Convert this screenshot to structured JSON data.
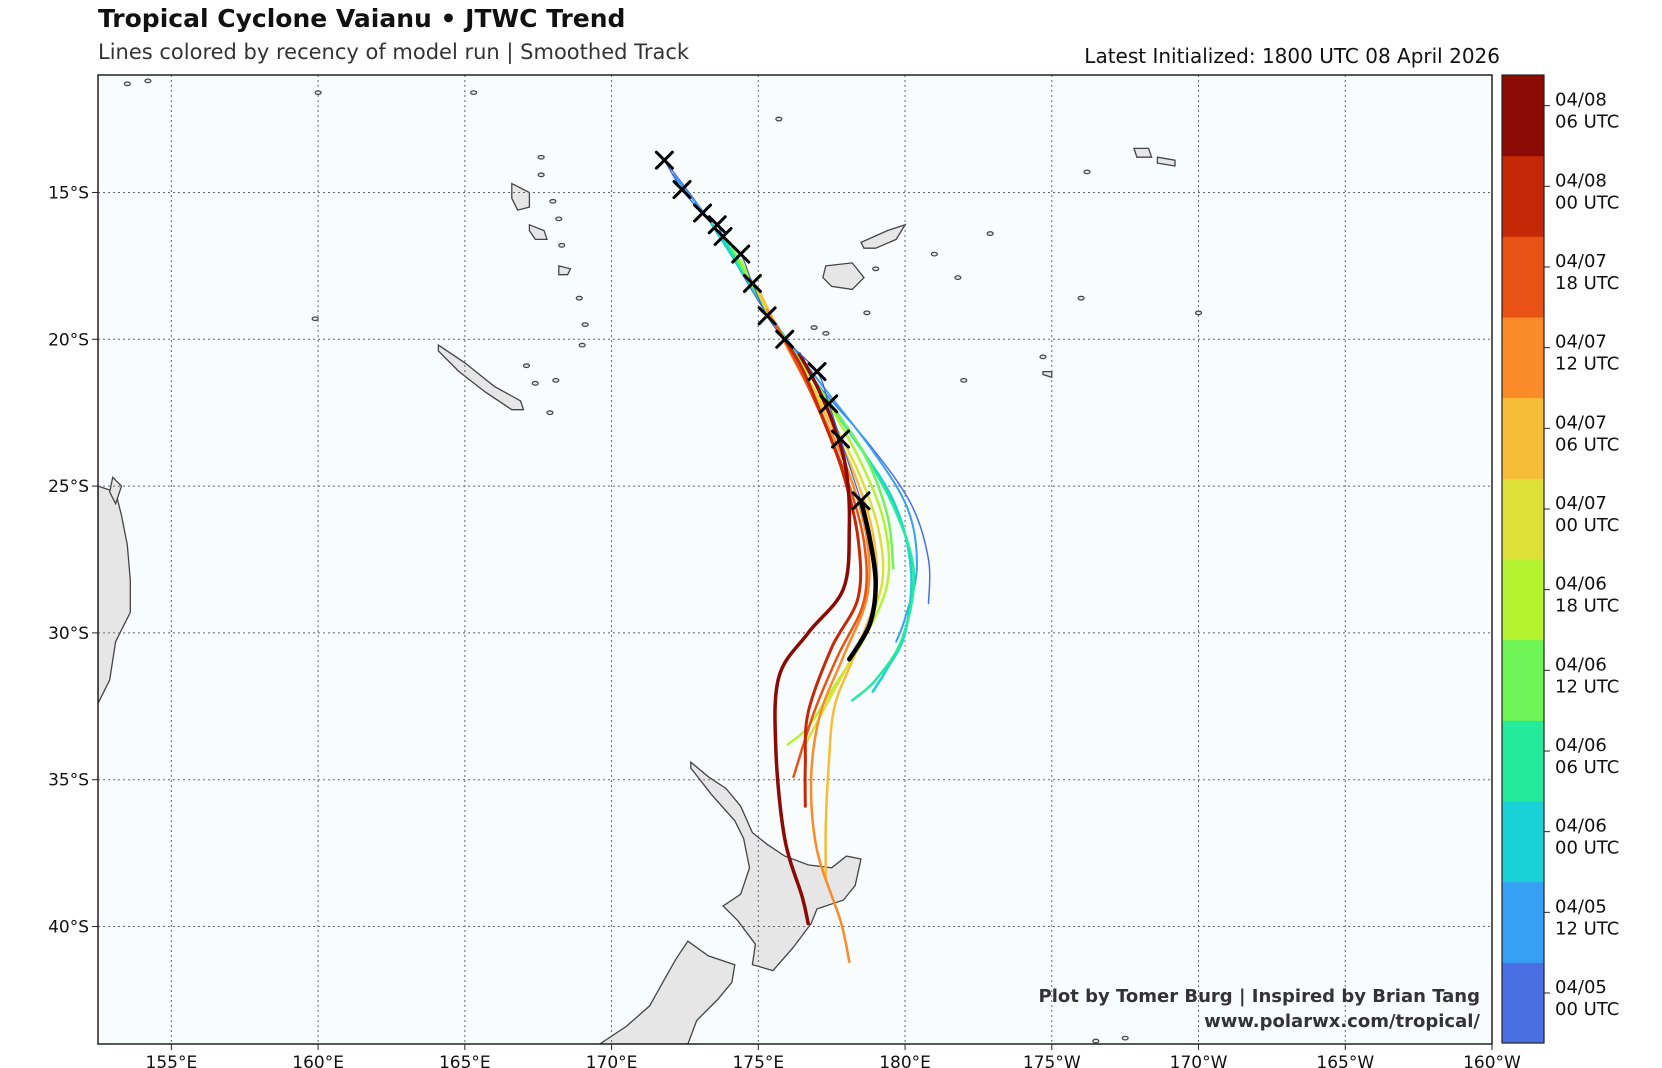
{
  "title": "Tropical Cyclone Vaianu • JTWC Trend",
  "subtitle": "Lines colored by recency of model run | Smoothed Track",
  "latest_initialized": "Latest Initialized: 1800 UTC 08 April 2026",
  "credit_line1": "Plot by Tomer Burg | Inspired by Brian Tang",
  "credit_line2": "www.polarwx.com/tropical/",
  "colors": {
    "ocean": "#f8fcfd",
    "land": "#e6e6e6",
    "coast": "#444444",
    "grid": "#666666"
  },
  "map": {
    "lon_range": [
      152.5,
      200
    ],
    "lat_range": [
      -44,
      -11
    ],
    "lon_ticks": [
      {
        "lon": 155,
        "label": "155°E"
      },
      {
        "lon": 160,
        "label": "160°E"
      },
      {
        "lon": 165,
        "label": "165°E"
      },
      {
        "lon": 170,
        "label": "170°E"
      },
      {
        "lon": 175,
        "label": "175°E"
      },
      {
        "lon": 180,
        "label": "180°E"
      },
      {
        "lon": 185,
        "label": "175°W"
      },
      {
        "lon": 190,
        "label": "170°W"
      },
      {
        "lon": 195,
        "label": "165°W"
      },
      {
        "lon": 200,
        "label": "160°W"
      }
    ],
    "lat_ticks": [
      {
        "lat": -15,
        "label": "15°S"
      },
      {
        "lat": -20,
        "label": "20°S"
      },
      {
        "lat": -25,
        "label": "25°S"
      },
      {
        "lat": -30,
        "label": "30°S"
      },
      {
        "lat": -35,
        "label": "35°S"
      },
      {
        "lat": -40,
        "label": "40°S"
      }
    ]
  },
  "colorbar": [
    {
      "line1": "04/05",
      "line2": "00 UTC",
      "color": "#4a6fe3"
    },
    {
      "line1": "04/05",
      "line2": "12 UTC",
      "color": "#36a0f5"
    },
    {
      "line1": "04/06",
      "line2": "00 UTC",
      "color": "#19d1d6"
    },
    {
      "line1": "04/06",
      "line2": "06 UTC",
      "color": "#24ea9a"
    },
    {
      "line1": "04/06",
      "line2": "12 UTC",
      "color": "#6ef457"
    },
    {
      "line1": "04/06",
      "line2": "18 UTC",
      "color": "#b5f230"
    },
    {
      "line1": "04/07",
      "line2": "00 UTC",
      "color": "#dfe037"
    },
    {
      "line1": "04/07",
      "line2": "06 UTC",
      "color": "#f6bd38"
    },
    {
      "line1": "04/07",
      "line2": "12 UTC",
      "color": "#fb8a28"
    },
    {
      "line1": "04/07",
      "line2": "18 UTC",
      "color": "#e95215"
    },
    {
      "line1": "04/08",
      "line2": "00 UTC",
      "color": "#c52806"
    },
    {
      "line1": "04/08",
      "line2": "06 UTC",
      "color": "#8b0a03"
    }
  ],
  "observed_track": [
    [
      171.8,
      -13.9
    ],
    [
      172.4,
      -14.9
    ],
    [
      173.1,
      -15.7
    ],
    [
      173.6,
      -16.1
    ],
    [
      173.8,
      -16.5
    ],
    [
      174.4,
      -17.1
    ],
    [
      174.8,
      -18.1
    ],
    [
      175.3,
      -19.2
    ],
    [
      175.9,
      -20.0
    ],
    [
      177.0,
      -21.1
    ],
    [
      177.4,
      -22.2
    ],
    [
      177.8,
      -23.4
    ],
    [
      178.5,
      -25.5
    ]
  ],
  "forecast_tracks": [
    {
      "run": "04/05 00 UTC",
      "width": 1.5,
      "points": [
        [
          171.8,
          -13.9
        ],
        [
          173.5,
          -16.2
        ],
        [
          175.2,
          -19.0
        ],
        [
          177.0,
          -21.5
        ],
        [
          178.8,
          -23.6
        ],
        [
          180.2,
          -25.6
        ],
        [
          180.8,
          -27.5
        ],
        [
          180.8,
          -29.0
        ]
      ]
    },
    {
      "run": "04/05 12 UTC",
      "width": 2,
      "points": [
        [
          172.1,
          -14.4
        ],
        [
          173.8,
          -16.6
        ],
        [
          175.4,
          -19.2
        ],
        [
          177.2,
          -21.6
        ],
        [
          178.9,
          -23.8
        ],
        [
          180.1,
          -25.8
        ],
        [
          180.4,
          -27.8
        ],
        [
          180.0,
          -29.5
        ],
        [
          179.7,
          -30.3
        ]
      ]
    },
    {
      "run": "04/06 00 UTC",
      "width": 2.5,
      "points": [
        [
          173.3,
          -15.9
        ],
        [
          174.9,
          -18.4
        ],
        [
          176.6,
          -21.0
        ],
        [
          178.2,
          -23.3
        ],
        [
          179.6,
          -25.5
        ],
        [
          180.2,
          -27.8
        ],
        [
          180.0,
          -30.0
        ],
        [
          179.4,
          -31.2
        ],
        [
          178.9,
          -32.0
        ]
      ]
    },
    {
      "run": "04/06 06 UTC",
      "width": 2.5,
      "points": [
        [
          173.8,
          -16.5
        ],
        [
          175.2,
          -18.9
        ],
        [
          176.9,
          -21.4
        ],
        [
          178.5,
          -23.7
        ],
        [
          179.7,
          -25.9
        ],
        [
          180.3,
          -28.0
        ],
        [
          179.9,
          -30.2
        ],
        [
          179.0,
          -31.6
        ],
        [
          178.2,
          -32.3
        ]
      ]
    },
    {
      "run": "04/06 12 UTC",
      "width": 2.5,
      "points": [
        [
          174.1,
          -16.9
        ],
        [
          175.4,
          -19.2
        ],
        [
          177.1,
          -21.7
        ],
        [
          178.6,
          -23.9
        ],
        [
          179.4,
          -26.0
        ],
        [
          179.6,
          -27.8
        ]
      ]
    },
    {
      "run": "04/06 18 UTC",
      "width": 2.5,
      "points": [
        [
          174.4,
          -17.3
        ],
        [
          175.6,
          -19.6
        ],
        [
          177.2,
          -21.9
        ],
        [
          178.5,
          -24.2
        ],
        [
          179.3,
          -26.3
        ],
        [
          179.4,
          -28.3
        ],
        [
          178.6,
          -30.2
        ],
        [
          177.6,
          -31.8
        ],
        [
          176.7,
          -33.2
        ],
        [
          176.0,
          -33.8
        ]
      ]
    },
    {
      "run": "04/07 00 UTC",
      "width": 2.5,
      "points": [
        [
          174.8,
          -18.0
        ],
        [
          175.8,
          -19.9
        ],
        [
          177.2,
          -22.2
        ],
        [
          178.4,
          -24.5
        ],
        [
          179.1,
          -26.5
        ],
        [
          179.2,
          -28.4
        ],
        [
          178.4,
          -30.4
        ],
        [
          177.4,
          -32.3
        ],
        [
          176.6,
          -33.8
        ]
      ]
    },
    {
      "run": "04/07 06 UTC",
      "width": 2.5,
      "points": [
        [
          175.0,
          -18.3
        ],
        [
          175.9,
          -20.1
        ],
        [
          177.1,
          -22.2
        ],
        [
          178.2,
          -24.4
        ],
        [
          178.9,
          -26.6
        ],
        [
          179.0,
          -28.7
        ],
        [
          178.3,
          -30.7
        ],
        [
          177.6,
          -32.5
        ],
        [
          177.4,
          -34.5
        ],
        [
          177.3,
          -36.5
        ],
        [
          177.3,
          -38.3
        ]
      ]
    },
    {
      "run": "04/07 12 UTC",
      "width": 2.5,
      "points": [
        [
          175.3,
          -19.0
        ],
        [
          176.0,
          -20.3
        ],
        [
          177.1,
          -22.4
        ],
        [
          178.1,
          -24.6
        ],
        [
          178.7,
          -26.8
        ],
        [
          178.7,
          -28.8
        ],
        [
          177.9,
          -30.8
        ],
        [
          177.1,
          -32.8
        ],
        [
          176.8,
          -35.0
        ],
        [
          177.0,
          -37.4
        ],
        [
          177.8,
          -39.8
        ],
        [
          178.1,
          -41.2
        ]
      ]
    },
    {
      "run": "04/07 18 UTC",
      "width": 2.5,
      "points": [
        [
          175.6,
          -19.5
        ],
        [
          176.2,
          -20.6
        ],
        [
          177.1,
          -22.5
        ],
        [
          178.0,
          -24.7
        ],
        [
          178.6,
          -26.9
        ],
        [
          178.6,
          -28.9
        ],
        [
          177.7,
          -30.8
        ],
        [
          176.9,
          -32.7
        ],
        [
          176.2,
          -34.9
        ]
      ]
    },
    {
      "run": "04/08 00 UTC",
      "width": 3,
      "points": [
        [
          175.9,
          -20.0
        ],
        [
          176.5,
          -21.0
        ],
        [
          177.2,
          -22.7
        ],
        [
          177.9,
          -24.6
        ],
        [
          178.4,
          -26.8
        ],
        [
          178.4,
          -28.8
        ],
        [
          177.5,
          -30.5
        ],
        [
          176.7,
          -32.7
        ],
        [
          176.6,
          -34.5
        ],
        [
          176.6,
          -35.9
        ]
      ]
    },
    {
      "run": "04/08 06 UTC",
      "width": 3.5,
      "points": [
        [
          176.4,
          -20.5
        ],
        [
          177.0,
          -21.6
        ],
        [
          177.6,
          -23.0
        ],
        [
          178.0,
          -24.5
        ],
        [
          178.1,
          -26.4
        ],
        [
          177.9,
          -28.5
        ],
        [
          176.7,
          -30.0
        ],
        [
          175.7,
          -31.5
        ],
        [
          175.6,
          -34.0
        ],
        [
          175.9,
          -37.0
        ],
        [
          176.5,
          -39.0
        ],
        [
          176.7,
          -39.9
        ]
      ]
    },
    {
      "run": "04/08 18 UTC",
      "width": 4.5,
      "color": "#000000",
      "points": [
        [
          178.5,
          -25.5
        ],
        [
          178.8,
          -26.8
        ],
        [
          179.0,
          -28.3
        ],
        [
          178.8,
          -29.7
        ],
        [
          178.1,
          -30.9
        ]
      ]
    }
  ],
  "land": [
    {
      "name": "new-zealand-north-island",
      "points": [
        [
          172.7,
          -34.4
        ],
        [
          173.3,
          -34.9
        ],
        [
          173.9,
          -35.3
        ],
        [
          174.4,
          -35.9
        ],
        [
          174.8,
          -36.8
        ],
        [
          175.3,
          -37.2
        ],
        [
          175.9,
          -37.6
        ],
        [
          176.7,
          -37.9
        ],
        [
          177.5,
          -38.0
        ],
        [
          178.0,
          -37.6
        ],
        [
          178.5,
          -37.7
        ],
        [
          178.3,
          -38.6
        ],
        [
          177.9,
          -39.1
        ],
        [
          177.0,
          -39.4
        ],
        [
          176.8,
          -39.9
        ],
        [
          176.2,
          -40.7
        ],
        [
          175.5,
          -41.5
        ],
        [
          174.8,
          -41.3
        ],
        [
          174.9,
          -40.6
        ],
        [
          174.3,
          -39.8
        ],
        [
          173.8,
          -39.3
        ],
        [
          174.4,
          -38.9
        ],
        [
          174.7,
          -38.0
        ],
        [
          174.5,
          -37.0
        ],
        [
          174.2,
          -36.4
        ],
        [
          173.4,
          -35.5
        ],
        [
          172.7,
          -34.6
        ]
      ]
    },
    {
      "name": "new-zealand-south-island",
      "points": [
        [
          172.6,
          -40.5
        ],
        [
          173.3,
          -41.0
        ],
        [
          174.2,
          -41.3
        ],
        [
          174.1,
          -41.9
        ],
        [
          173.6,
          -42.5
        ],
        [
          172.9,
          -43.2
        ],
        [
          172.6,
          -44.0
        ],
        [
          169.6,
          -44.0
        ],
        [
          170.5,
          -43.4
        ],
        [
          171.3,
          -42.7
        ],
        [
          171.8,
          -41.8
        ],
        [
          172.2,
          -41.1
        ]
      ]
    },
    {
      "name": "new-caledonia",
      "points": [
        [
          164.1,
          -20.2
        ],
        [
          165.0,
          -20.8
        ],
        [
          166.0,
          -21.6
        ],
        [
          166.9,
          -22.1
        ],
        [
          167.0,
          -22.4
        ],
        [
          166.6,
          -22.4
        ],
        [
          165.7,
          -21.8
        ],
        [
          164.8,
          -21.1
        ],
        [
          164.1,
          -20.4
        ]
      ]
    },
    {
      "name": "viti-levu",
      "points": [
        [
          177.3,
          -17.5
        ],
        [
          178.2,
          -17.4
        ],
        [
          178.6,
          -17.9
        ],
        [
          178.2,
          -18.3
        ],
        [
          177.5,
          -18.2
        ],
        [
          177.2,
          -17.9
        ]
      ]
    },
    {
      "name": "vanua-levu",
      "points": [
        [
          178.5,
          -16.7
        ],
        [
          179.4,
          -16.3
        ],
        [
          180.0,
          -16.1
        ],
        [
          179.7,
          -16.6
        ],
        [
          179.0,
          -16.9
        ],
        [
          178.6,
          -16.9
        ]
      ]
    },
    {
      "name": "espiritu-santo",
      "points": [
        [
          166.6,
          -14.7
        ],
        [
          167.2,
          -15.0
        ],
        [
          167.2,
          -15.5
        ],
        [
          166.8,
          -15.6
        ],
        [
          166.6,
          -15.2
        ]
      ]
    },
    {
      "name": "malakula",
      "points": [
        [
          167.2,
          -16.1
        ],
        [
          167.7,
          -16.3
        ],
        [
          167.8,
          -16.6
        ],
        [
          167.4,
          -16.6
        ],
        [
          167.2,
          -16.3
        ]
      ]
    },
    {
      "name": "efate",
      "points": [
        [
          168.2,
          -17.5
        ],
        [
          168.6,
          -17.6
        ],
        [
          168.5,
          -17.8
        ],
        [
          168.2,
          -17.8
        ]
      ]
    },
    {
      "name": "savaii",
      "points": [
        [
          187.8,
          -13.5
        ],
        [
          188.3,
          -13.5
        ],
        [
          188.4,
          -13.8
        ],
        [
          187.9,
          -13.8
        ]
      ]
    },
    {
      "name": "upolu",
      "points": [
        [
          188.6,
          -13.8
        ],
        [
          189.2,
          -13.9
        ],
        [
          189.2,
          -14.1
        ],
        [
          188.6,
          -14.0
        ]
      ]
    },
    {
      "name": "tongatapu",
      "points": [
        [
          184.7,
          -21.1
        ],
        [
          185.0,
          -21.1
        ],
        [
          185.0,
          -21.3
        ],
        [
          184.7,
          -21.2
        ]
      ]
    },
    {
      "name": "australia-coast",
      "points": [
        [
          152.5,
          -25.0
        ],
        [
          153.1,
          -25.2
        ],
        [
          153.3,
          -26.0
        ],
        [
          153.5,
          -27.0
        ],
        [
          153.6,
          -28.2
        ],
        [
          153.6,
          -29.3
        ],
        [
          153.1,
          -30.3
        ],
        [
          152.9,
          -31.6
        ],
        [
          152.5,
          -32.4
        ]
      ]
    },
    {
      "name": "fraser-island",
      "points": [
        [
          153.0,
          -24.7
        ],
        [
          153.3,
          -25.0
        ],
        [
          153.1,
          -25.6
        ],
        [
          152.9,
          -25.2
        ]
      ]
    }
  ],
  "small_islands": [
    [
      153.5,
      -11.3
    ],
    [
      154.2,
      -11.2
    ],
    [
      160.0,
      -11.6
    ],
    [
      165.3,
      -11.6
    ],
    [
      167.6,
      -13.8
    ],
    [
      167.6,
      -14.4
    ],
    [
      168.0,
      -15.3
    ],
    [
      168.2,
      -15.9
    ],
    [
      168.3,
      -16.8
    ],
    [
      168.9,
      -18.6
    ],
    [
      169.1,
      -19.5
    ],
    [
      169.0,
      -20.2
    ],
    [
      167.1,
      -20.9
    ],
    [
      167.4,
      -21.5
    ],
    [
      168.1,
      -21.4
    ],
    [
      167.9,
      -22.5
    ],
    [
      159.9,
      -19.3
    ],
    [
      177.3,
      -19.8
    ],
    [
      178.7,
      -19.1
    ],
    [
      179.0,
      -17.6
    ],
    [
      181.0,
      -17.1
    ],
    [
      181.8,
      -17.9
    ],
    [
      182.9,
      -16.4
    ],
    [
      186.0,
      -18.6
    ],
    [
      186.2,
      -14.3
    ],
    [
      190.0,
      -19.1
    ],
    [
      184.7,
      -20.6
    ],
    [
      182.0,
      -21.4
    ],
    [
      176.9,
      -19.6
    ],
    [
      175.7,
      -12.5
    ],
    [
      187.5,
      -43.8
    ],
    [
      186.5,
      -43.9
    ]
  ]
}
